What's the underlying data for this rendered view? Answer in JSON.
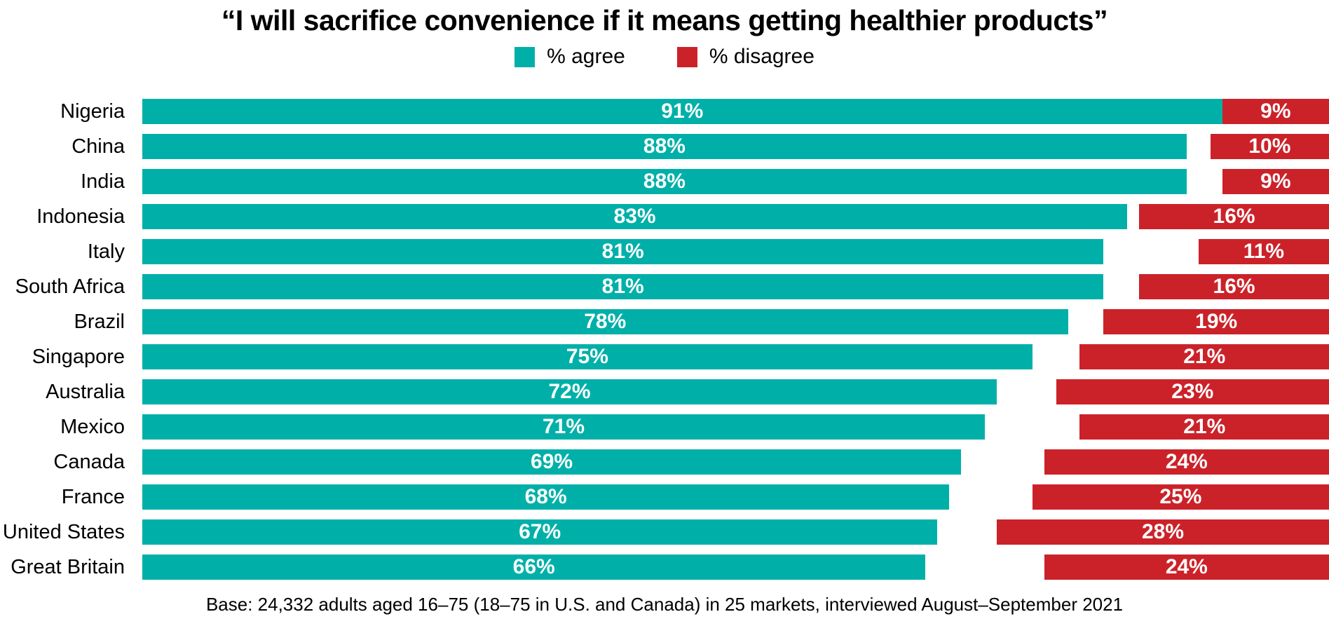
{
  "chart": {
    "title": "“I will sacrifice convenience if it means getting healthier products”",
    "legend": {
      "agree_label": "% agree",
      "disagree_label": "% disagree"
    },
    "colors": {
      "agree": "#00B0A8",
      "disagree": "#CB2229"
    },
    "base_note": "Base: 24,332 adults aged 16–75 (18–75 in U.S. and Canada) in 25 markets, interviewed August–September 2021"
  },
  "chart_data": {
    "type": "bar",
    "orientation": "horizontal",
    "title": "“I will sacrifice convenience if it means getting healthier products”",
    "categories": [
      "Nigeria",
      "China",
      "India",
      "Indonesia",
      "Italy",
      "South Africa",
      "Brazil",
      "Singapore",
      "Australia",
      "Mexico",
      "Canada",
      "France",
      "United States",
      "Great Britain"
    ],
    "series": [
      {
        "name": "% agree",
        "color": "#00B0A8",
        "anchor": "left",
        "values": [
          91,
          88,
          88,
          83,
          81,
          81,
          78,
          75,
          72,
          71,
          69,
          68,
          67,
          66
        ]
      },
      {
        "name": "% disagree",
        "color": "#CB2229",
        "anchor": "right",
        "values": [
          9,
          10,
          9,
          16,
          11,
          16,
          19,
          21,
          23,
          21,
          24,
          25,
          28,
          24
        ]
      }
    ],
    "value_suffix": "%",
    "value_labels": "inside-center, white bold",
    "xlim": [
      0,
      100
    ],
    "grid": false,
    "legend_position": "top-center",
    "layout_note": "agree bars anchored at left edge, disagree bars anchored at right edge, shared 0–100% scale",
    "footnote": "Base: 24,332 adults aged 16–75 (18–75 in U.S. and Canada) in 25 markets, interviewed August–September 2021"
  }
}
